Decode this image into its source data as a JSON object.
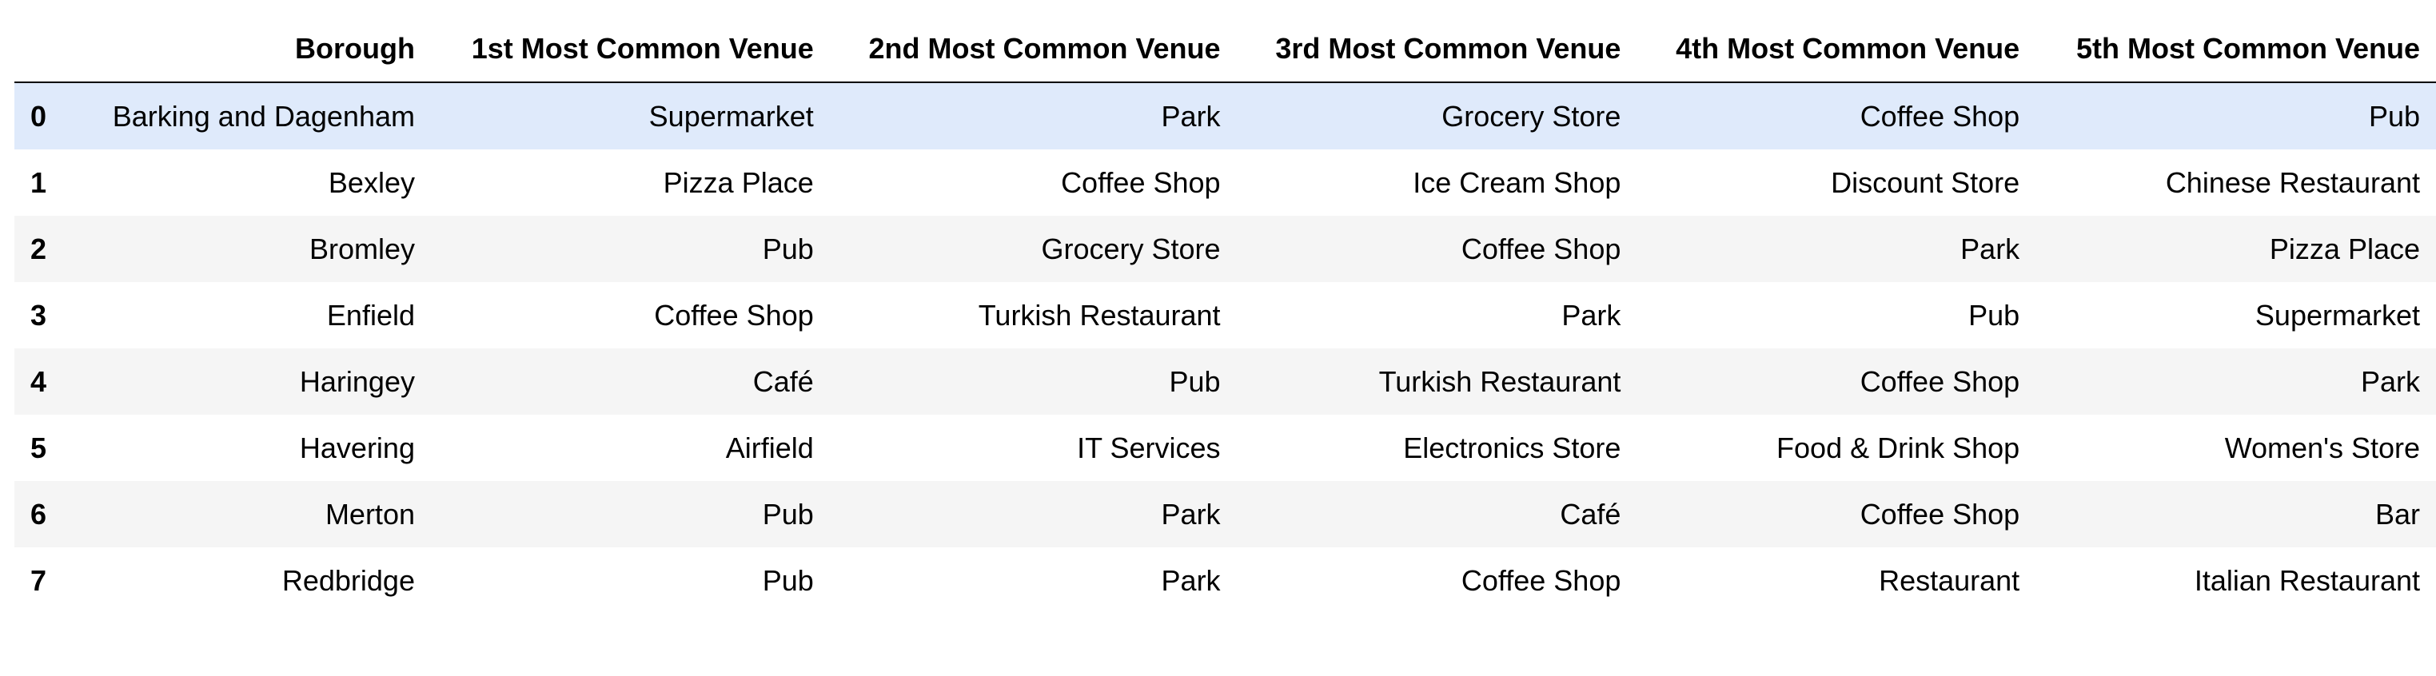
{
  "table": {
    "columns": [
      "",
      "Borough",
      "1st Most Common Venue",
      "2nd Most Common Venue",
      "3rd Most Common Venue",
      "4th Most Common Venue",
      "5th Most Common Venue"
    ],
    "rows": [
      {
        "index": "0",
        "borough": "Barking and Dagenham",
        "v1": "Supermarket",
        "v2": "Park",
        "v3": "Grocery Store",
        "v4": "Coffee Shop",
        "v5": "Pub"
      },
      {
        "index": "1",
        "borough": "Bexley",
        "v1": "Pizza Place",
        "v2": "Coffee Shop",
        "v3": "Ice Cream Shop",
        "v4": "Discount Store",
        "v5": "Chinese Restaurant"
      },
      {
        "index": "2",
        "borough": "Bromley",
        "v1": "Pub",
        "v2": "Grocery Store",
        "v3": "Coffee Shop",
        "v4": "Park",
        "v5": "Pizza Place"
      },
      {
        "index": "3",
        "borough": "Enfield",
        "v1": "Coffee Shop",
        "v2": "Turkish Restaurant",
        "v3": "Park",
        "v4": "Pub",
        "v5": "Supermarket"
      },
      {
        "index": "4",
        "borough": "Haringey",
        "v1": "Café",
        "v2": "Pub",
        "v3": "Turkish Restaurant",
        "v4": "Coffee Shop",
        "v5": "Park"
      },
      {
        "index": "5",
        "borough": "Havering",
        "v1": "Airfield",
        "v2": "IT Services",
        "v3": "Electronics Store",
        "v4": "Food & Drink Shop",
        "v5": "Women's Store"
      },
      {
        "index": "6",
        "borough": "Merton",
        "v1": "Pub",
        "v2": "Park",
        "v3": "Café",
        "v4": "Coffee Shop",
        "v5": "Bar"
      },
      {
        "index": "7",
        "borough": "Redbridge",
        "v1": "Pub",
        "v2": "Park",
        "v3": "Coffee Shop",
        "v4": "Restaurant",
        "v5": "Italian Restaurant"
      }
    ]
  }
}
